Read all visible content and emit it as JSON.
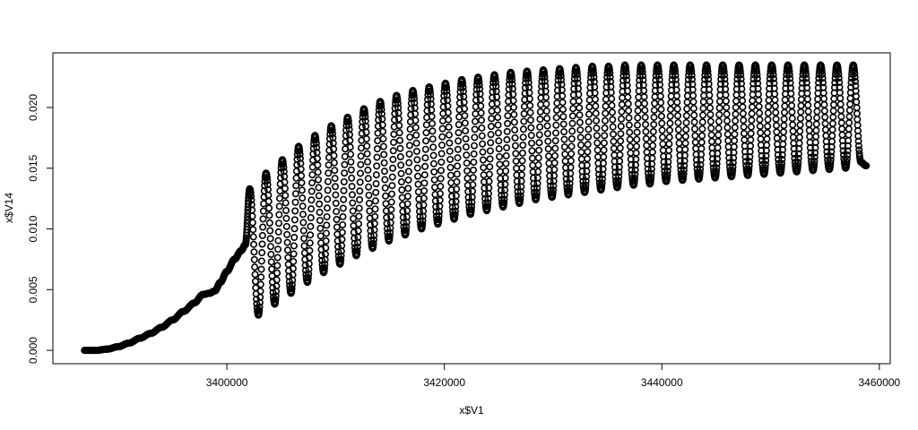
{
  "chart_data": {
    "type": "scatter",
    "title": "",
    "xlabel": "x$V1",
    "ylabel": "x$V14",
    "xlim": [
      3384000,
      3461000
    ],
    "ylim": [
      -0.0011,
      0.0245
    ],
    "x_ticks": [
      {
        "value": 3400000,
        "label": "3400000"
      },
      {
        "value": 3420000,
        "label": "3420000"
      },
      {
        "value": 3440000,
        "label": "3440000"
      },
      {
        "value": 3460000,
        "label": "3460000"
      }
    ],
    "y_ticks": [
      {
        "value": 0.0,
        "label": "0.000"
      },
      {
        "value": 0.005,
        "label": "0.005"
      },
      {
        "value": 0.01,
        "label": "0.010"
      },
      {
        "value": 0.015,
        "label": "0.015"
      },
      {
        "value": 0.02,
        "label": "0.020"
      }
    ],
    "grid": false,
    "marker_color": "#000000",
    "series": [
      {
        "points": [
          [
            3386900,
            0.0
          ],
          [
            3388000,
            0.0
          ],
          [
            3389000,
            0.0001
          ],
          [
            3390000,
            0.0003
          ],
          [
            3391000,
            0.0006
          ],
          [
            3392000,
            0.001
          ],
          [
            3393000,
            0.0014
          ],
          [
            3394000,
            0.0019
          ],
          [
            3395000,
            0.0025
          ],
          [
            3396000,
            0.0032
          ],
          [
            3397000,
            0.0039
          ],
          [
            3397800,
            0.0046
          ],
          [
            3398400,
            0.0047
          ],
          [
            3398900,
            0.0049
          ],
          [
            3399400,
            0.0056
          ],
          [
            3400000,
            0.0065
          ],
          [
            3400700,
            0.0075
          ],
          [
            3401300,
            0.0082
          ],
          [
            3401700,
            0.0087
          ],
          [
            3402100,
            0.0133
          ],
          [
            3402900,
            0.0029
          ],
          [
            3403600,
            0.0146
          ],
          [
            3404400,
            0.0038
          ],
          [
            3405100,
            0.0157
          ],
          [
            3405900,
            0.0047
          ],
          [
            3406600,
            0.0168
          ],
          [
            3407400,
            0.0056
          ],
          [
            3408100,
            0.0177
          ],
          [
            3408900,
            0.0064
          ],
          [
            3409600,
            0.0185
          ],
          [
            3410400,
            0.0071
          ],
          [
            3411100,
            0.0192
          ],
          [
            3411900,
            0.0078
          ],
          [
            3412600,
            0.0199
          ],
          [
            3413400,
            0.0084
          ],
          [
            3414100,
            0.0205
          ],
          [
            3414900,
            0.009
          ],
          [
            3415600,
            0.021
          ],
          [
            3416400,
            0.0095
          ],
          [
            3417100,
            0.0214
          ],
          [
            3417900,
            0.01
          ],
          [
            3418600,
            0.0217
          ],
          [
            3419400,
            0.0104
          ],
          [
            3420100,
            0.022
          ],
          [
            3420900,
            0.0108
          ],
          [
            3421600,
            0.0223
          ],
          [
            3422400,
            0.0112
          ],
          [
            3423100,
            0.0225
          ],
          [
            3423900,
            0.0115
          ],
          [
            3424600,
            0.0227
          ],
          [
            3425400,
            0.0118
          ],
          [
            3426100,
            0.0229
          ],
          [
            3426900,
            0.0121
          ],
          [
            3427600,
            0.023
          ],
          [
            3428400,
            0.0124
          ],
          [
            3429100,
            0.0231
          ],
          [
            3429900,
            0.0126
          ],
          [
            3430600,
            0.0232
          ],
          [
            3431400,
            0.0128
          ],
          [
            3432100,
            0.0233
          ],
          [
            3432900,
            0.013
          ],
          [
            3433600,
            0.0234
          ],
          [
            3434400,
            0.0132
          ],
          [
            3435100,
            0.0234
          ],
          [
            3435900,
            0.0134
          ],
          [
            3436600,
            0.0235
          ],
          [
            3437400,
            0.0136
          ],
          [
            3438100,
            0.0235
          ],
          [
            3438900,
            0.0137
          ],
          [
            3439600,
            0.0235
          ],
          [
            3440400,
            0.0139
          ],
          [
            3441100,
            0.0235
          ],
          [
            3441900,
            0.014
          ],
          [
            3442600,
            0.0235
          ],
          [
            3443400,
            0.0141
          ],
          [
            3444100,
            0.0235
          ],
          [
            3444900,
            0.0142
          ],
          [
            3445600,
            0.0235
          ],
          [
            3446400,
            0.0143
          ],
          [
            3447100,
            0.0235
          ],
          [
            3447900,
            0.0144
          ],
          [
            3448600,
            0.0235
          ],
          [
            3449400,
            0.0145
          ],
          [
            3450100,
            0.0235
          ],
          [
            3450900,
            0.0146
          ],
          [
            3451600,
            0.0235
          ],
          [
            3452400,
            0.0147
          ],
          [
            3453100,
            0.0235
          ],
          [
            3453900,
            0.0148
          ],
          [
            3454600,
            0.0235
          ],
          [
            3455400,
            0.0149
          ],
          [
            3456100,
            0.0235
          ],
          [
            3456900,
            0.015
          ],
          [
            3457600,
            0.0235
          ],
          [
            3458300,
            0.0155
          ],
          [
            3458800,
            0.0152
          ]
        ]
      }
    ]
  }
}
